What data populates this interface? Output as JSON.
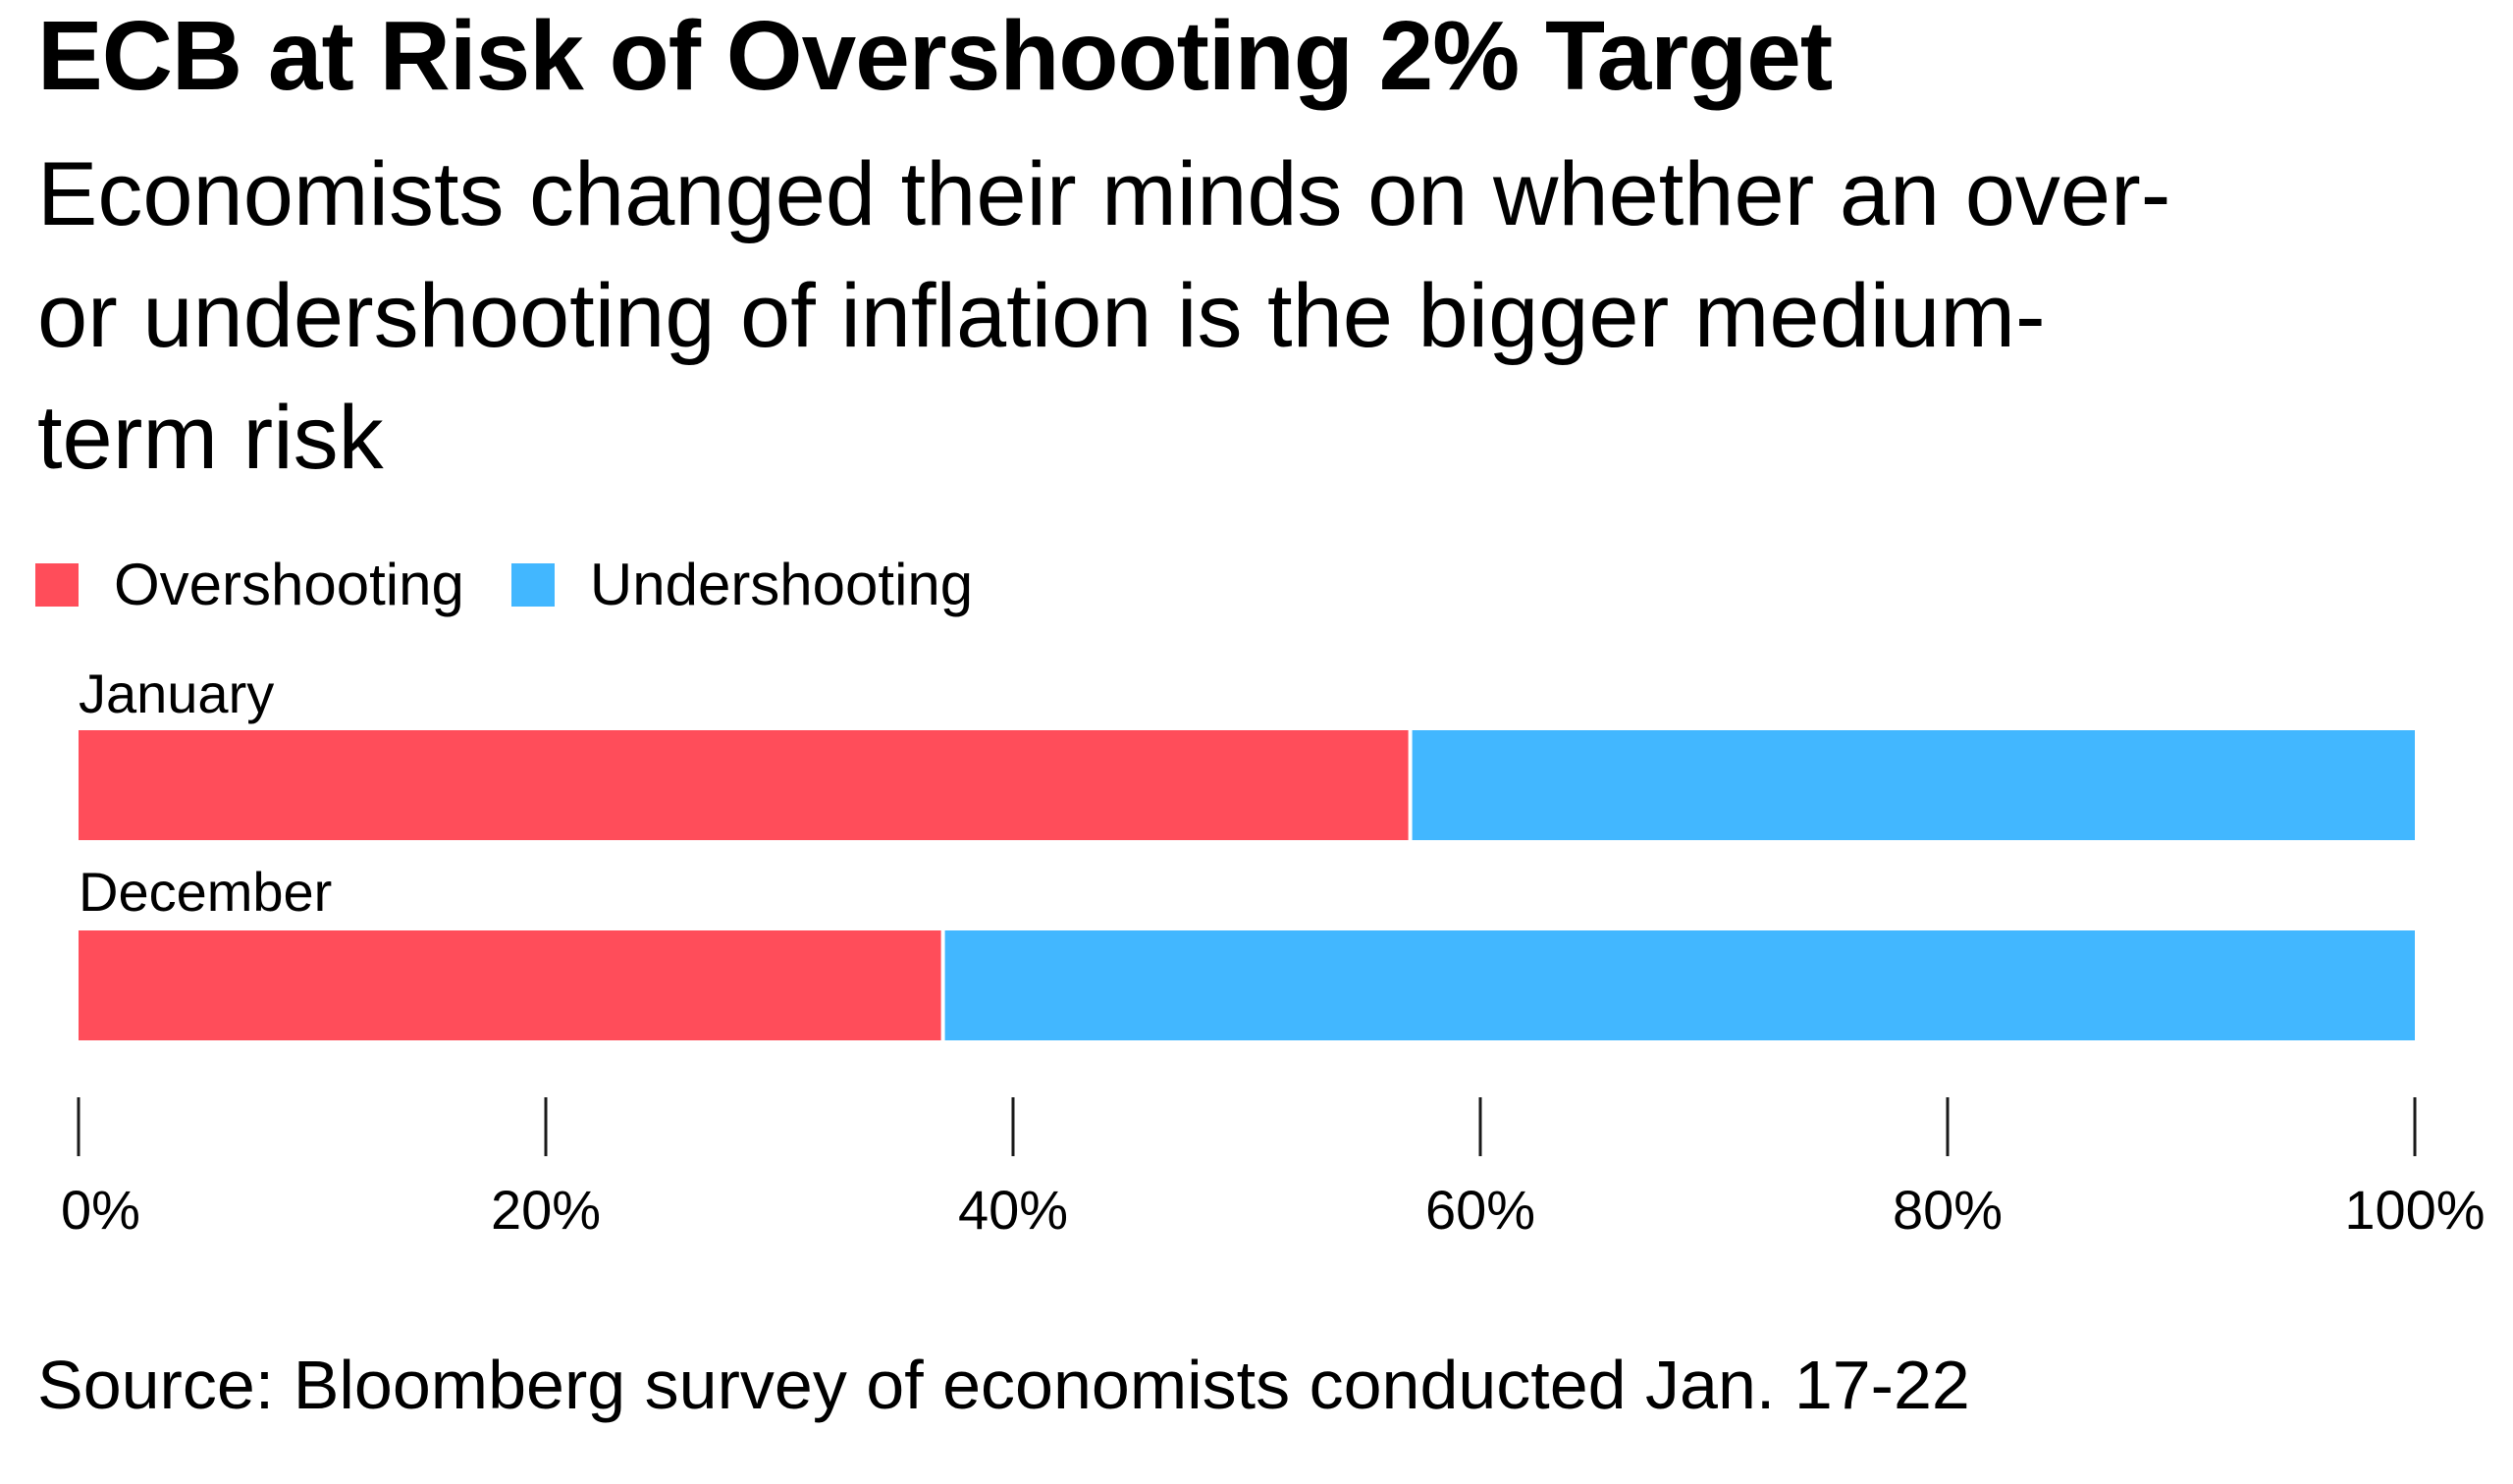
{
  "title": "ECB at Risk of Overshooting 2% Target",
  "subtitle_lines": [
    "Economists changed their minds on whether an over-",
    "or undershooting of inflation is the bigger medium-",
    "term risk"
  ],
  "source": "Source: Bloomberg survey of economists conducted Jan. 17-22",
  "chart_data": {
    "type": "bar",
    "orientation": "horizontal",
    "stacked": true,
    "title": "ECB at Risk of Overshooting 2% Target",
    "subtitle": "Economists changed their minds on whether an over- or undershooting of inflation is the bigger medium-term risk",
    "categories": [
      "January",
      "December"
    ],
    "series": [
      {
        "name": "Overshooting",
        "color": "#ff4d5a",
        "values": [
          57,
          37
        ]
      },
      {
        "name": "Undershooting",
        "color": "#42b7ff",
        "values": [
          43,
          63
        ]
      }
    ],
    "xlim": [
      0,
      100
    ],
    "x_ticks": [
      0,
      20,
      40,
      60,
      80,
      100
    ],
    "x_tick_labels": [
      "0%",
      "20%",
      "40%",
      "60%",
      "80%",
      "100%"
    ],
    "xlabel": "",
    "ylabel": "",
    "grid": false,
    "legend": "top-left",
    "source": "Source: Bloomberg survey of economists conducted Jan. 17-22"
  }
}
